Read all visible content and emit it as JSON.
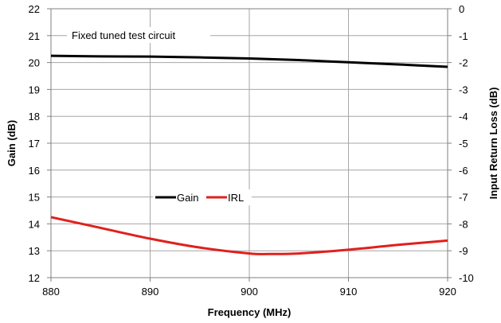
{
  "chart_data": {
    "type": "line",
    "annotation": "Fixed tuned test circuit",
    "xlabel": "Frequency (MHz)",
    "ylabel": "Gain (dB)",
    "y2label": "Input Return Loss (dB)",
    "xlim": [
      880,
      920
    ],
    "ylim": [
      12,
      22
    ],
    "y2lim": [
      -10,
      0
    ],
    "xticks": [
      880,
      890,
      900,
      910,
      920
    ],
    "yticks": [
      12,
      13,
      14,
      15,
      16,
      17,
      18,
      19,
      20,
      21,
      22
    ],
    "y2ticks": [
      -10,
      -9,
      -8,
      -7,
      -6,
      -5,
      -4,
      -3,
      -2,
      -1,
      0
    ],
    "grid": true,
    "legend_position": "center-left",
    "series": [
      {
        "name": "Gain",
        "axis": "left",
        "color": "#000000",
        "x": [
          880,
          885,
          890,
          895,
          900,
          905,
          910,
          915,
          920
        ],
        "values": [
          20.25,
          20.23,
          20.22,
          20.19,
          20.15,
          20.09,
          20.01,
          19.93,
          19.84
        ]
      },
      {
        "name": "IRL",
        "axis": "right",
        "color": "#e0201c",
        "x": [
          880,
          885,
          890,
          895,
          900,
          902,
          905,
          910,
          915,
          920
        ],
        "values": [
          -7.75,
          -8.15,
          -8.55,
          -8.88,
          -9.1,
          -9.12,
          -9.1,
          -8.96,
          -8.78,
          -8.62
        ]
      }
    ]
  }
}
